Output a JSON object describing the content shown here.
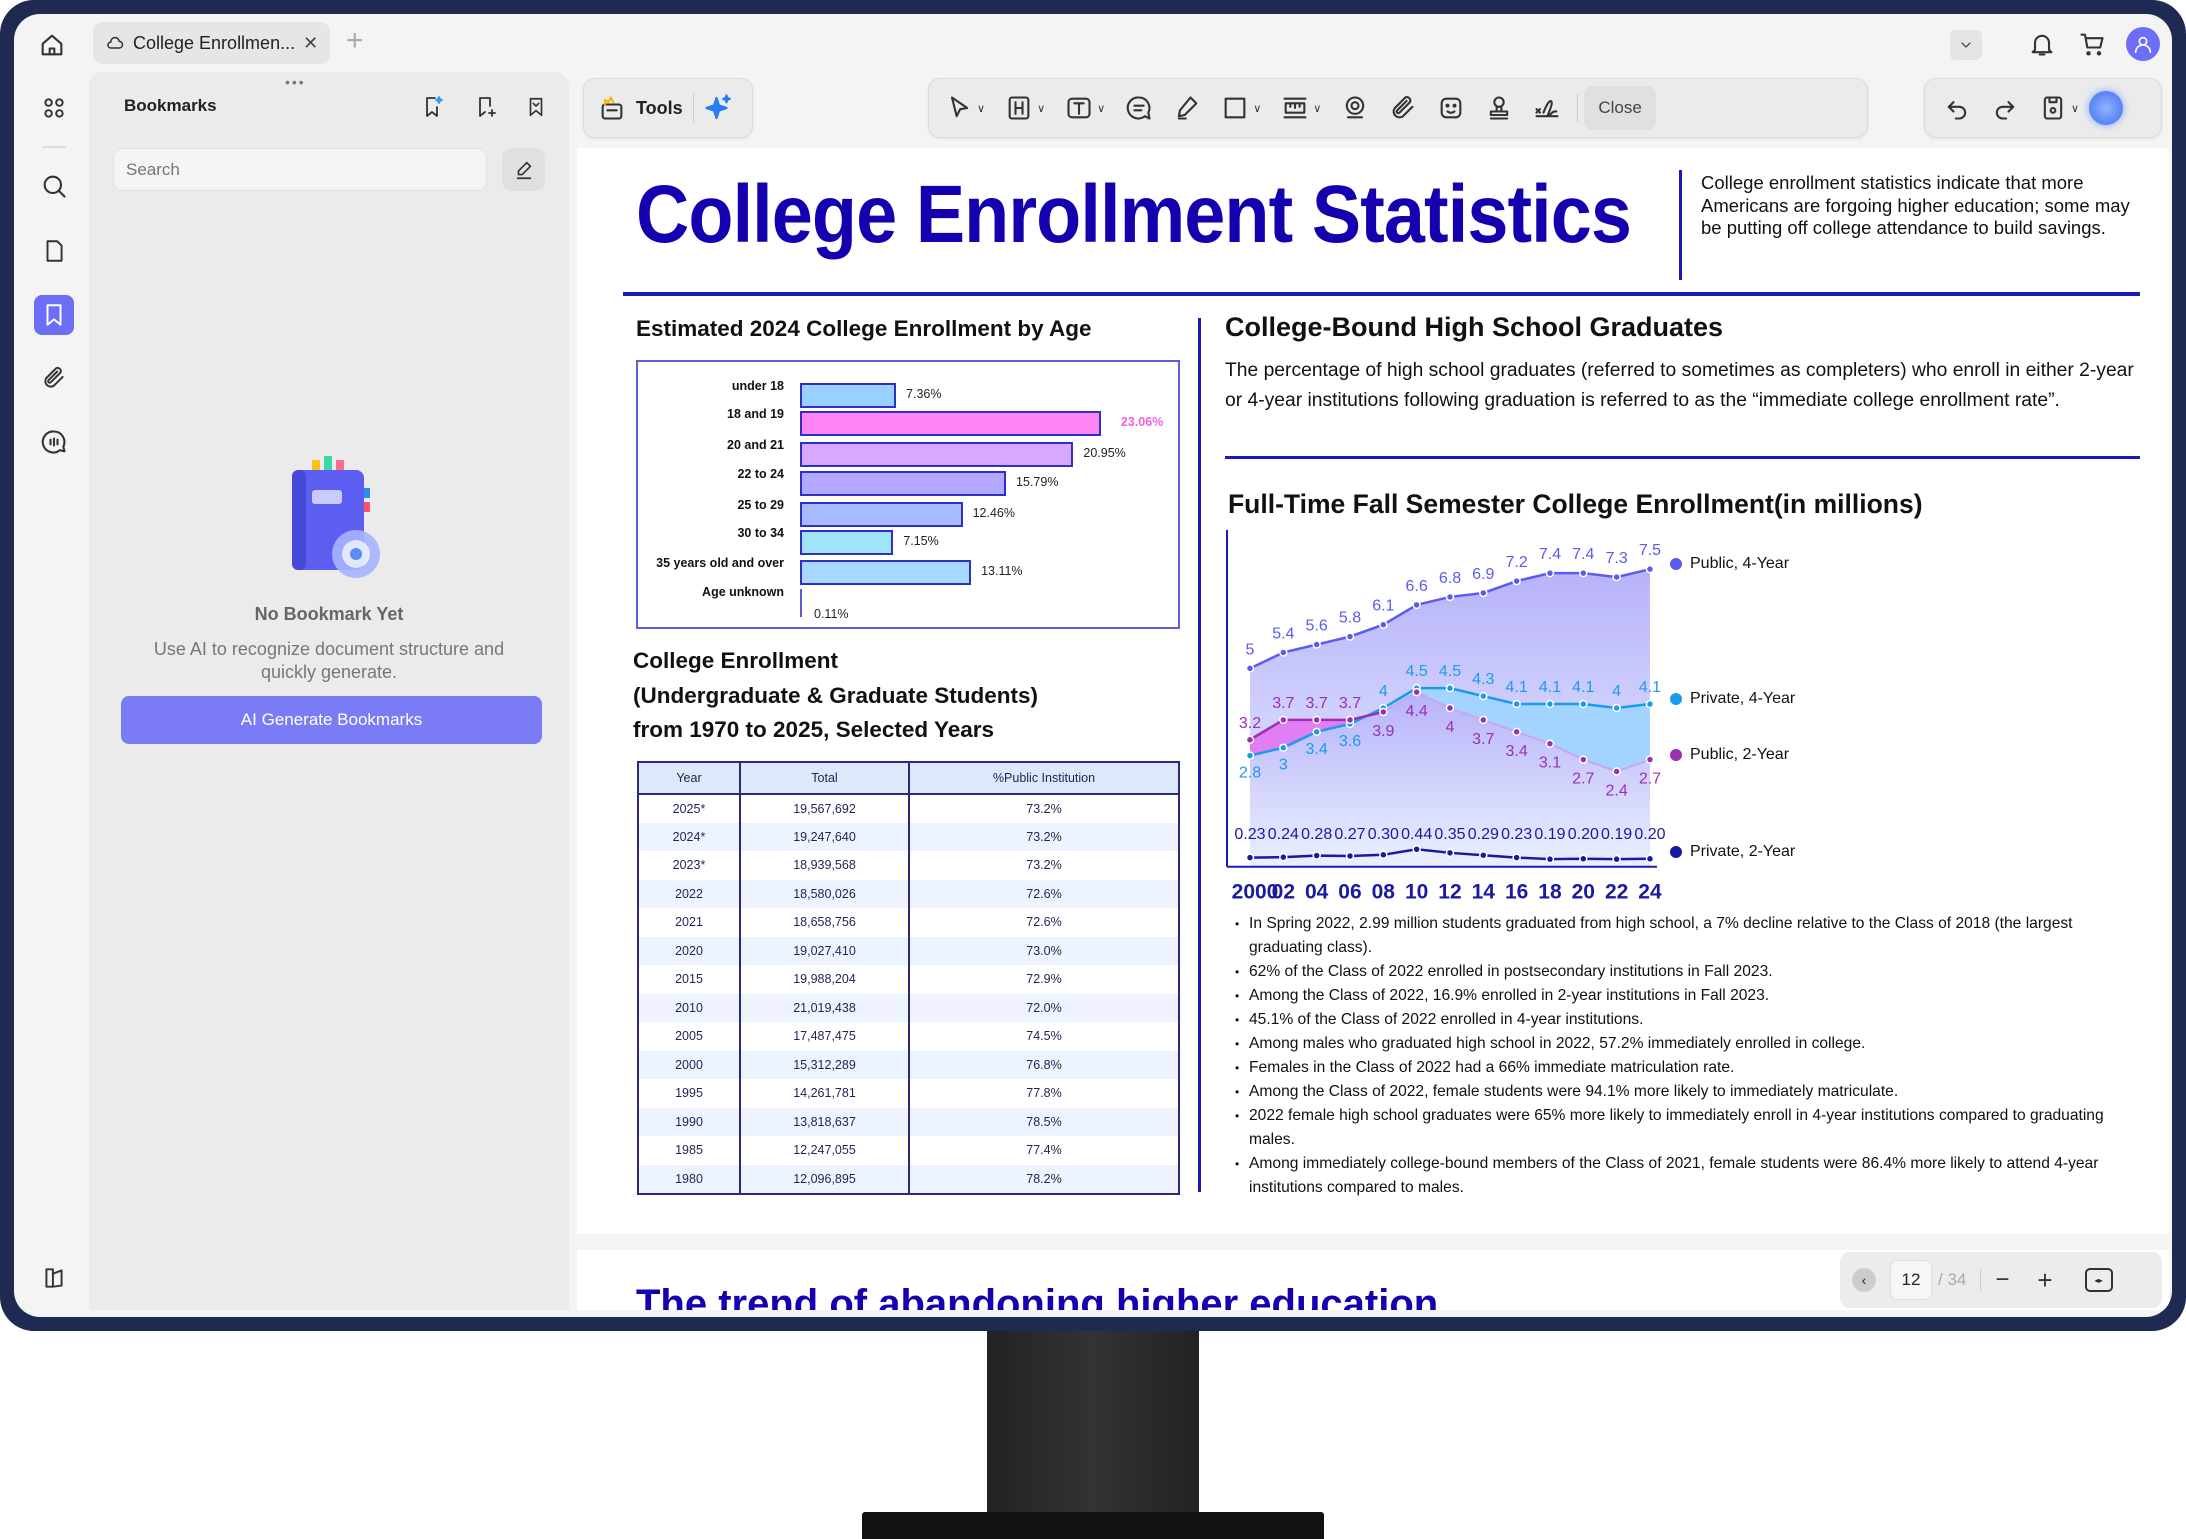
{
  "app": {
    "tab_title": "College Enrollmen...",
    "toolbar": {
      "tools_label": "Tools",
      "close_label": "Close"
    },
    "sidebar": {
      "title": "Bookmarks",
      "search_placeholder": "Search",
      "empty_title": "No Bookmark Yet",
      "empty_desc": "Use AI to recognize document structure and quickly generate.",
      "ai_button": "AI Generate Bookmarks"
    },
    "pager": {
      "current": "12",
      "total": "/ 34"
    }
  },
  "colors": {
    "accent": "#6c6ef5",
    "title_blue": "#1500b0",
    "rule_blue": "#1a1ab8"
  },
  "document": {
    "title": "College Enrollment Statistics",
    "intro": "College enrollment statistics indicate that more Americans are forgoing higher education; some may be putting off college attendance to build savings.",
    "age_heading": "Estimated 2024 College Enrollment by Age",
    "table_heading_1": "College Enrollment",
    "table_heading_2": "(Undergraduate & Graduate Students)",
    "table_heading_3": "from 1970 to 2025, Selected Years",
    "table": {
      "headers": [
        "Year",
        "Total",
        "%Public Institution"
      ],
      "rows": [
        [
          "2025*",
          "19,567,692",
          "73.2%"
        ],
        [
          "2024*",
          "19,247,640",
          "73.2%"
        ],
        [
          "2023*",
          "18,939,568",
          "73.2%"
        ],
        [
          "2022",
          "18,580,026",
          "72.6%"
        ],
        [
          "2021",
          "18,658,756",
          "72.6%"
        ],
        [
          "2020",
          "19,027,410",
          "73.0%"
        ],
        [
          "2015",
          "19,988,204",
          "72.9%"
        ],
        [
          "2010",
          "21,019,438",
          "72.0%"
        ],
        [
          "2005",
          "17,487,475",
          "74.5%"
        ],
        [
          "2000",
          "15,312,289",
          "76.8%"
        ],
        [
          "1995",
          "14,261,781",
          "77.8%"
        ],
        [
          "1990",
          "13,818,637",
          "78.5%"
        ],
        [
          "1985",
          "12,247,055",
          "77.4%"
        ],
        [
          "1980",
          "12,096,895",
          "78.2%"
        ]
      ]
    },
    "grad_heading": "College-Bound High School Graduates",
    "grad_text": "The percentage of high school graduates (referred to sometimes as completers) who enroll in either 2-year or 4-year institutions following graduation is referred to as the “immediate college enrollment rate”.",
    "bullets": [
      "In Spring 2022, 2.99 million students graduated from high school, a 7% decline relative to the Class of 2018 (the largest graduating class).",
      "62% of the Class of 2022 enrolled in postsecondary institutions in Fall 2023.",
      "Among the Class of 2022, 16.9% enrolled in 2-year institutions in Fall 2023.",
      "45.1% of the Class of 2022 enrolled in 4-year institutions.",
      "Among males who graduated high school in 2022, 57.2% immediately enrolled in college.",
      "Females in the Class of 2022 had a 66% immediate matriculation rate.",
      "Among the Class of 2022, female students were 94.1% more likely to immediately matriculate.",
      "2022 female high school graduates were 65% more likely to immediately enroll in 4-year institutions compared to graduating males.",
      "Among immediately college-bound members of the Class of 2021, female students were 86.4% more likely to attend 4-year institutions compared to males."
    ],
    "next_page_title": "The trend of abandoning higher education"
  },
  "chart_data": [
    {
      "type": "bar",
      "title": "Estimated 2024 College Enrollment by Age",
      "categories": [
        "under 18",
        "18 and 19",
        "20 and 21",
        "22 to 24",
        "25 to 29",
        "30 to 34",
        "35 years old and over",
        "Age unknown"
      ],
      "values": [
        7.36,
        23.06,
        20.95,
        15.79,
        12.46,
        7.15,
        13.11,
        0.11
      ],
      "labels": [
        "7.36%",
        "23.06%",
        "20.95%",
        "15.79%",
        "12.46%",
        "7.15%",
        "13.11%",
        "0.11%"
      ],
      "colors": [
        "#9ad0ff",
        "#ff85f5",
        "#d8a8ff",
        "#b3a8ff",
        "#a8baff",
        "#a0e4f8",
        "#a8d8ff",
        "#5b5bd6"
      ],
      "highlight_index": 1,
      "unit": "%"
    },
    {
      "type": "line",
      "title": "Full-Time Fall Semester College Enrollment(in millions)",
      "x": [
        "2000",
        "02",
        "04",
        "06",
        "08",
        "10",
        "12",
        "14",
        "16",
        "18",
        "20",
        "22",
        "24"
      ],
      "ylim": [
        0,
        8
      ],
      "legend_position": "right",
      "series": [
        {
          "name": "Public, 4-Year",
          "color": "#5b5bf0",
          "values": [
            5,
            5.4,
            5.6,
            5.8,
            6.1,
            6.6,
            6.8,
            6.9,
            7.2,
            7.4,
            7.4,
            7.3,
            7.5
          ],
          "labels": [
            "5",
            "5.4",
            "5.6",
            "5.8",
            "6.1",
            "6.6",
            "6.8",
            "6.9",
            "7.2",
            "7.4",
            "7.4",
            "7.3",
            "7.5"
          ]
        },
        {
          "name": "Private, 4-Year",
          "color": "#1a9bf0",
          "values": [
            2.8,
            3,
            3.4,
            3.6,
            4,
            4.5,
            4.5,
            4.3,
            4.1,
            4.1,
            4.1,
            4,
            4.1
          ],
          "labels": [
            "2.8",
            "3",
            "3.4",
            "3.6",
            "4",
            "4.5",
            "4.5",
            "4.3",
            "4.1",
            "4.1",
            "4.1",
            "4",
            "4.1"
          ]
        },
        {
          "name": "Public, 2-Year",
          "color": "#9b2fb5",
          "values": [
            3.2,
            3.7,
            3.7,
            3.7,
            3.9,
            4.4,
            4,
            3.7,
            3.4,
            3.1,
            2.7,
            2.4,
            2.7
          ],
          "labels": [
            "3.2",
            "3.7",
            "3.7",
            "3.7",
            "3.9",
            "4.4",
            "4",
            "3.7",
            "3.4",
            "3.1",
            "2.7",
            "2.4",
            "2.7"
          ]
        },
        {
          "name": "Private, 2-Year",
          "color": "#1a1aa0",
          "values": [
            0.23,
            0.24,
            0.28,
            0.27,
            0.3,
            0.44,
            0.35,
            0.29,
            0.23,
            0.19,
            0.2,
            0.19,
            0.2
          ],
          "labels": [
            "0.23",
            "0.24",
            "0.28",
            "0.27",
            "0.30",
            "0.44",
            "0.35",
            "0.29",
            "0.23",
            "0.19",
            "0.20",
            "0.19",
            "0.20"
          ]
        }
      ]
    }
  ]
}
